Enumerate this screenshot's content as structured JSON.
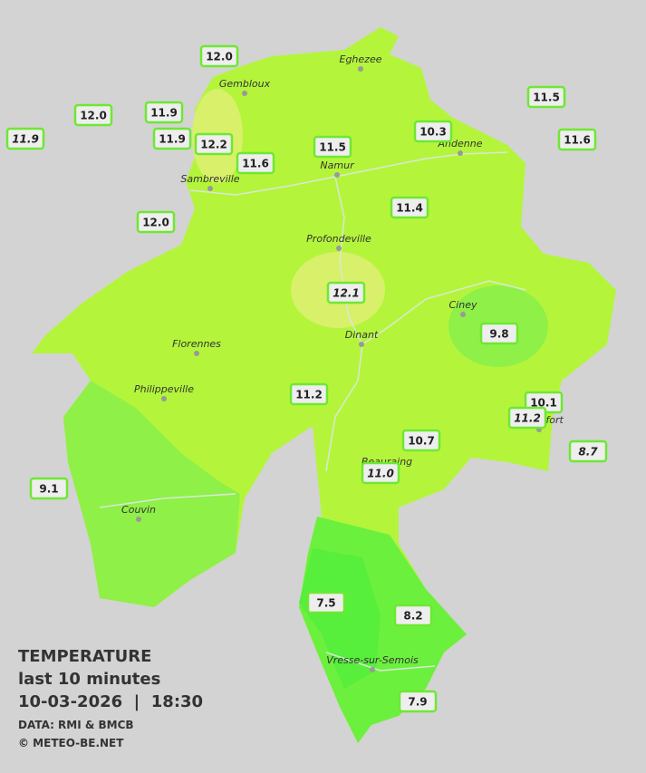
{
  "towns": [
    {
      "name": "Eghezee"
    },
    {
      "name": "Gembloux"
    },
    {
      "name": "Andenne"
    },
    {
      "name": "Namur"
    },
    {
      "name": "Sambreville"
    },
    {
      "name": "Profondeville"
    },
    {
      "name": "Ciney"
    },
    {
      "name": "Dinant"
    },
    {
      "name": "Florennes"
    },
    {
      "name": "Philippeville"
    },
    {
      "name": "Rochefort"
    },
    {
      "name": "Beauraing"
    },
    {
      "name": "Couvin"
    },
    {
      "name": "Vresse-sur-Semois"
    }
  ],
  "stations": [
    {
      "value": "12.0"
    },
    {
      "value": "11.5"
    },
    {
      "value": "12.0"
    },
    {
      "value": "11.9"
    },
    {
      "value": "11.9",
      "italic": true
    },
    {
      "value": "10.3"
    },
    {
      "value": "11.9"
    },
    {
      "value": "12.2"
    },
    {
      "value": "11.5"
    },
    {
      "value": "11.6"
    },
    {
      "value": "11.6"
    },
    {
      "value": "11.4"
    },
    {
      "value": "12.0"
    },
    {
      "value": "12.1",
      "italic": true
    },
    {
      "value": "9.8"
    },
    {
      "value": "11.2"
    },
    {
      "value": "10.1"
    },
    {
      "value": "11.2",
      "italic": true
    },
    {
      "value": "8.7",
      "italic": true
    },
    {
      "value": "10.7"
    },
    {
      "value": "11.0",
      "italic": true
    },
    {
      "value": "9.1"
    },
    {
      "value": "7.5"
    },
    {
      "value": "8.2"
    },
    {
      "value": "7.9"
    }
  ],
  "caption": {
    "title": "TEMPERATURE",
    "period": "last 10 minutes",
    "datetime": "10-03-2026  |  18:30",
    "source": "DATA: RMI & BMCB",
    "credit": "© METEO-BE.NET"
  }
}
